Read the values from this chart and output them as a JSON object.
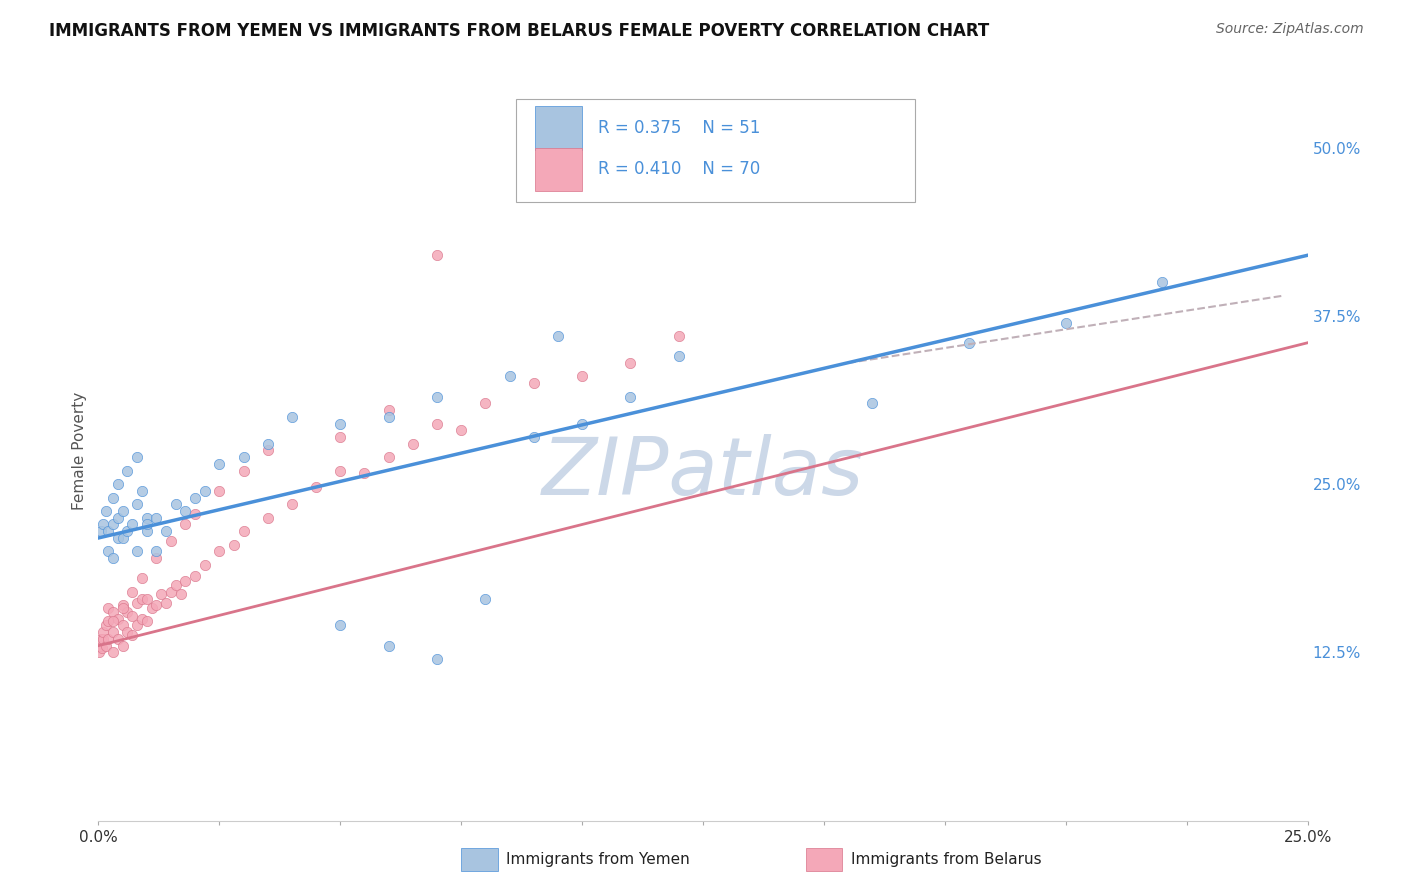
{
  "title": "IMMIGRANTS FROM YEMEN VS IMMIGRANTS FROM BELARUS FEMALE POVERTY CORRELATION CHART",
  "source": "Source: ZipAtlas.com",
  "ylabel": "Female Poverty",
  "xlim": [
    0.0,
    0.25
  ],
  "ylim": [
    0.0,
    0.55
  ],
  "xticks": [
    0.0,
    0.025,
    0.05,
    0.075,
    0.1,
    0.125,
    0.15,
    0.175,
    0.2,
    0.225,
    0.25
  ],
  "ytick_labels_right": [
    "12.5%",
    "25.0%",
    "37.5%",
    "50.0%"
  ],
  "ytick_positions_right": [
    0.125,
    0.25,
    0.375,
    0.5
  ],
  "legend_r1": "R = 0.375",
  "legend_n1": "N = 51",
  "legend_r2": "R = 0.410",
  "legend_n2": "N = 70",
  "color_yemen": "#a8c4e0",
  "color_belarus": "#f4a8b8",
  "color_line_yemen": "#4a90d9",
  "color_line_belarus": "#d9748a",
  "color_dashed_line": "#c0b0b8",
  "watermark": "ZIPatlas",
  "watermark_color": "#ccd8e8",
  "yemen_x": [
    0.0005,
    0.001,
    0.0015,
    0.002,
    0.002,
    0.003,
    0.003,
    0.004,
    0.004,
    0.005,
    0.005,
    0.006,
    0.007,
    0.008,
    0.009,
    0.01,
    0.01,
    0.012,
    0.014,
    0.016,
    0.018,
    0.02,
    0.022,
    0.025,
    0.03,
    0.035,
    0.04,
    0.05,
    0.06,
    0.07,
    0.08,
    0.09,
    0.1,
    0.11,
    0.12,
    0.008,
    0.01,
    0.012,
    0.16,
    0.18,
    0.2,
    0.22,
    0.05,
    0.06,
    0.07,
    0.085,
    0.095,
    0.003,
    0.004,
    0.006,
    0.008
  ],
  "yemen_y": [
    0.215,
    0.22,
    0.23,
    0.2,
    0.215,
    0.195,
    0.22,
    0.21,
    0.225,
    0.21,
    0.23,
    0.215,
    0.22,
    0.235,
    0.245,
    0.215,
    0.225,
    0.225,
    0.215,
    0.235,
    0.23,
    0.24,
    0.245,
    0.265,
    0.27,
    0.28,
    0.3,
    0.145,
    0.13,
    0.12,
    0.165,
    0.285,
    0.295,
    0.315,
    0.345,
    0.2,
    0.22,
    0.2,
    0.31,
    0.355,
    0.37,
    0.4,
    0.295,
    0.3,
    0.315,
    0.33,
    0.36,
    0.24,
    0.25,
    0.26,
    0.27
  ],
  "belarus_x": [
    0.0002,
    0.0004,
    0.0006,
    0.0008,
    0.001,
    0.001,
    0.0015,
    0.0015,
    0.002,
    0.002,
    0.002,
    0.003,
    0.003,
    0.003,
    0.004,
    0.004,
    0.005,
    0.005,
    0.005,
    0.006,
    0.006,
    0.007,
    0.007,
    0.008,
    0.008,
    0.009,
    0.009,
    0.01,
    0.01,
    0.011,
    0.012,
    0.013,
    0.014,
    0.015,
    0.016,
    0.017,
    0.018,
    0.02,
    0.022,
    0.025,
    0.028,
    0.03,
    0.035,
    0.04,
    0.045,
    0.05,
    0.055,
    0.06,
    0.065,
    0.07,
    0.075,
    0.08,
    0.09,
    0.1,
    0.11,
    0.12,
    0.003,
    0.005,
    0.007,
    0.009,
    0.012,
    0.015,
    0.018,
    0.02,
    0.025,
    0.03,
    0.035,
    0.05,
    0.06,
    0.07
  ],
  "belarus_y": [
    0.125,
    0.13,
    0.135,
    0.128,
    0.135,
    0.14,
    0.13,
    0.145,
    0.135,
    0.148,
    0.158,
    0.125,
    0.14,
    0.155,
    0.135,
    0.15,
    0.13,
    0.145,
    0.16,
    0.14,
    0.155,
    0.138,
    0.152,
    0.145,
    0.162,
    0.15,
    0.165,
    0.148,
    0.165,
    0.158,
    0.16,
    0.168,
    0.162,
    0.17,
    0.175,
    0.168,
    0.178,
    0.182,
    0.19,
    0.2,
    0.205,
    0.215,
    0.225,
    0.235,
    0.248,
    0.26,
    0.258,
    0.27,
    0.28,
    0.295,
    0.29,
    0.31,
    0.325,
    0.33,
    0.34,
    0.36,
    0.148,
    0.158,
    0.17,
    0.18,
    0.195,
    0.208,
    0.22,
    0.228,
    0.245,
    0.26,
    0.275,
    0.285,
    0.305,
    0.42
  ],
  "yemen_line_x": [
    0.0,
    0.25
  ],
  "yemen_line_y": [
    0.21,
    0.42
  ],
  "belarus_line_x": [
    0.0,
    0.25
  ],
  "belarus_line_y": [
    0.13,
    0.355
  ],
  "dashed_line_x": [
    0.155,
    0.245
  ],
  "dashed_line_y": [
    0.34,
    0.39
  ]
}
